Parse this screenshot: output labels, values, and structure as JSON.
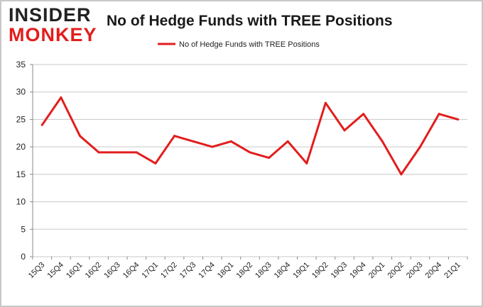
{
  "brand": {
    "line1": "INSIDER",
    "line2": "MONKEY"
  },
  "colors": {
    "series": "#e31d1d",
    "grid": "#c8c8c8",
    "axis": "#888888"
  },
  "chart_data": {
    "type": "line",
    "title": "No of Hedge Funds with TREE Positions",
    "legend": {
      "position": "top",
      "entries": [
        "No of Hedge Funds with TREE Positions"
      ]
    },
    "categories": [
      "15Q3",
      "15Q4",
      "16Q1",
      "16Q2",
      "16Q3",
      "16Q4",
      "17Q1",
      "17Q2",
      "17Q3",
      "17Q4",
      "18Q1",
      "18Q2",
      "18Q3",
      "18Q4",
      "19Q1",
      "19Q2",
      "19Q3",
      "19Q4",
      "20Q1",
      "20Q2",
      "20Q3",
      "20Q4",
      "21Q1"
    ],
    "series": [
      {
        "name": "No of Hedge Funds with TREE Positions",
        "values": [
          24,
          29,
          22,
          19,
          19,
          19,
          17,
          22,
          21,
          20,
          21,
          19,
          18,
          21,
          17,
          28,
          23,
          26,
          21,
          15,
          20,
          26,
          25
        ]
      }
    ],
    "ylim": [
      0,
      35
    ],
    "yticks": [
      0,
      5,
      10,
      15,
      20,
      25,
      30,
      35
    ],
    "grid": true
  }
}
